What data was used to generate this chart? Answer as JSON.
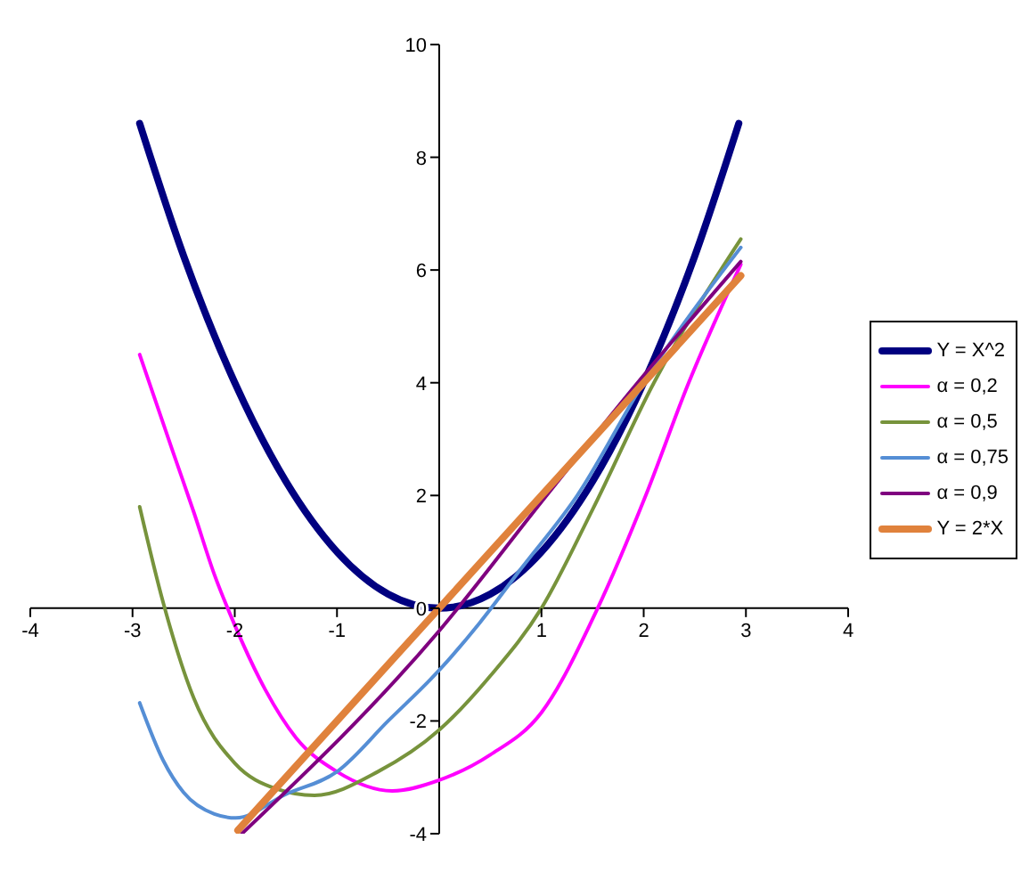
{
  "chart_data": {
    "type": "line",
    "xlim": [
      -4,
      4
    ],
    "ylim": [
      -4,
      10
    ],
    "xticks": [
      -4,
      -3,
      -2,
      -1,
      {
        "value": 0,
        "label": null
      },
      1,
      2,
      3,
      4
    ],
    "yticks": [
      -4,
      -2,
      0,
      2,
      4,
      6,
      8,
      10
    ],
    "grid": false,
    "legend": "right",
    "marker": "none",
    "line_style": "solid",
    "series": [
      {
        "name": "Y = X^2",
        "color": "#000080",
        "x": [
          -2.93,
          -2.5,
          -2,
          -1.5,
          -1,
          -0.5,
          0,
          0.5,
          1,
          1.5,
          2,
          2.5,
          2.93
        ],
        "values": [
          8.6,
          6.25,
          4,
          2.25,
          1,
          0.25,
          0,
          0.25,
          1,
          2.25,
          4,
          6.25,
          8.6
        ]
      },
      {
        "name": "α = 0,2",
        "color": "#ff00ff",
        "x": [
          -2.93,
          -2.6,
          -2.4,
          -2.2,
          -2,
          -1.7,
          -1.4,
          -1,
          -0.46,
          0,
          0.5,
          1,
          1.55,
          2.02,
          2.44,
          2.95
        ],
        "values": [
          4.5,
          2.75,
          1.7,
          0.6,
          -0.3,
          -1.45,
          -2.3,
          -2.9,
          -3.24,
          -3.05,
          -2.6,
          -1.85,
          0,
          2,
          4,
          6.1
        ]
      },
      {
        "name": "α = 0,5",
        "color": "#77933c",
        "x": [
          -2.93,
          -2.7,
          -2.4,
          -2,
          -1.6,
          -1.22,
          -0.6,
          0,
          0.5,
          1,
          1.5,
          2.1,
          2.95
        ],
        "values": [
          1.8,
          0.1,
          -1.6,
          -2.75,
          -3.2,
          -3.32,
          -2.9,
          -2.16,
          -1.2,
          0,
          1.75,
          4,
          6.55
        ]
      },
      {
        "name": "α = 0,75",
        "color": "#558ed5",
        "x": [
          -2.93,
          -2.7,
          -2.5,
          -2.2,
          -1.99,
          -1.5,
          -1,
          -0.5,
          0,
          0.4,
          0.8,
          1.35,
          2,
          2.95
        ],
        "values": [
          -1.68,
          -2.7,
          -3.27,
          -3.65,
          -3.72,
          -3.3,
          -2.9,
          -2,
          -1.1,
          -0.25,
          0.7,
          2,
          4,
          6.4
        ]
      },
      {
        "name": "α = 0,9",
        "color": "#7f007f",
        "x": [
          -1.93,
          0,
          1.05,
          1.94,
          2.95
        ],
        "values": [
          -4,
          -0.4,
          2,
          4,
          6.15
        ]
      },
      {
        "name": "Y = 2*X",
        "color": "#e0823c",
        "x": [
          -1.97,
          0,
          2.95
        ],
        "values": [
          -3.94,
          0,
          5.9
        ]
      }
    ]
  }
}
